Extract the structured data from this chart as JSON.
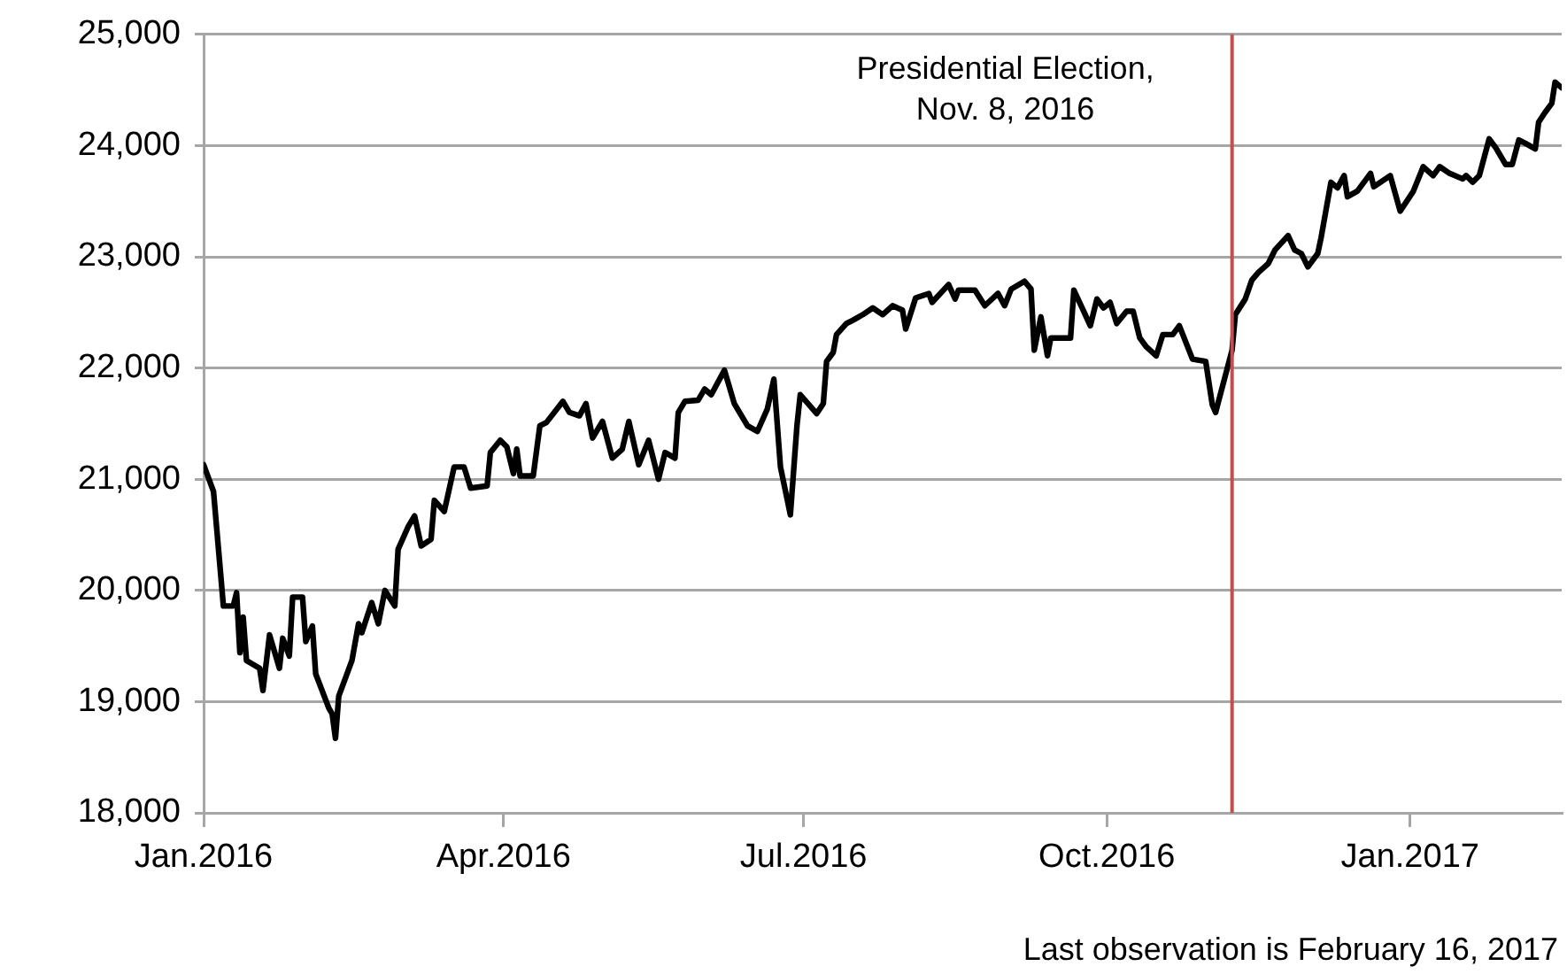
{
  "chart_data": {
    "type": "line",
    "xlim": [
      "2016-01-01",
      "2017-02-16"
    ],
    "ylim": [
      18000,
      25000
    ],
    "xticks": [
      {
        "value": "2016-01-01",
        "label": "Jan.2016"
      },
      {
        "value": "2016-04-01",
        "label": "Apr.2016"
      },
      {
        "value": "2016-07-01",
        "label": "Jul.2016"
      },
      {
        "value": "2016-10-01",
        "label": "Oct.2016"
      },
      {
        "value": "2017-01-01",
        "label": "Jan.2017"
      }
    ],
    "yticks": [
      {
        "value": 18000,
        "label": "18,000"
      },
      {
        "value": 19000,
        "label": "19,000"
      },
      {
        "value": 20000,
        "label": "20,000"
      },
      {
        "value": 21000,
        "label": "21,000"
      },
      {
        "value": 22000,
        "label": "22,000"
      },
      {
        "value": 23000,
        "label": "23,000"
      },
      {
        "value": 24000,
        "label": "24,000"
      },
      {
        "value": 25000,
        "label": "25,000"
      }
    ],
    "grid": "y",
    "legend": false,
    "marker": "none",
    "line_style": "solid",
    "ref_lines": [
      {
        "axis": "x",
        "value": "2016-11-08",
        "label": "Presidential Election,\nNov. 8, 2016",
        "color": "#c0504d"
      }
    ],
    "annotations": [
      "Last observation is February 16, 2017"
    ],
    "series": [
      {
        "color": "#000000",
        "x": [
          "2016-01-01",
          "2016-01-04",
          "2016-01-07",
          "2016-01-10",
          "2016-01-11",
          "2016-01-12",
          "2016-01-13",
          "2016-01-14",
          "2016-01-18",
          "2016-01-19",
          "2016-01-21",
          "2016-01-24",
          "2016-01-25",
          "2016-01-27",
          "2016-01-28",
          "2016-01-31",
          "2016-02-01",
          "2016-02-03",
          "2016-02-04",
          "2016-02-08",
          "2016-02-09",
          "2016-02-10",
          "2016-02-11",
          "2016-02-15",
          "2016-02-17",
          "2016-02-18",
          "2016-02-21",
          "2016-02-23",
          "2016-02-25",
          "2016-02-28",
          "2016-02-29",
          "2016-03-03",
          "2016-03-05",
          "2016-03-07",
          "2016-03-10",
          "2016-03-11",
          "2016-03-14",
          "2016-03-17",
          "2016-03-20",
          "2016-03-22",
          "2016-03-27",
          "2016-03-28",
          "2016-03-31",
          "2016-04-02",
          "2016-04-04",
          "2016-04-05",
          "2016-04-06",
          "2016-04-10",
          "2016-04-12",
          "2016-04-14",
          "2016-04-19",
          "2016-04-21",
          "2016-04-24",
          "2016-04-26",
          "2016-04-28",
          "2016-05-01",
          "2016-05-04",
          "2016-05-07",
          "2016-05-09",
          "2016-05-12",
          "2016-05-15",
          "2016-05-18",
          "2016-05-20",
          "2016-05-23",
          "2016-05-24",
          "2016-05-26",
          "2016-05-30",
          "2016-06-01",
          "2016-06-03",
          "2016-06-07",
          "2016-06-10",
          "2016-06-14",
          "2016-06-17",
          "2016-06-20",
          "2016-06-22",
          "2016-06-24",
          "2016-06-27",
          "2016-06-29",
          "2016-06-30",
          "2016-07-05",
          "2016-07-07",
          "2016-07-08",
          "2016-07-10",
          "2016-07-11",
          "2016-07-14",
          "2016-07-16",
          "2016-07-19",
          "2016-07-22",
          "2016-07-25",
          "2016-07-28",
          "2016-07-31",
          "2016-08-01",
          "2016-08-04",
          "2016-08-08",
          "2016-08-09",
          "2016-08-14",
          "2016-08-16",
          "2016-08-17",
          "2016-08-22",
          "2016-08-25",
          "2016-08-29",
          "2016-08-31",
          "2016-09-02",
          "2016-09-06",
          "2016-09-08",
          "2016-09-09",
          "2016-09-11",
          "2016-09-13",
          "2016-09-14",
          "2016-09-20",
          "2016-09-21",
          "2016-09-24",
          "2016-09-26",
          "2016-09-28",
          "2016-09-30",
          "2016-10-02",
          "2016-10-04",
          "2016-10-07",
          "2016-10-09",
          "2016-10-11",
          "2016-10-13",
          "2016-10-16",
          "2016-10-18",
          "2016-10-21",
          "2016-10-23",
          "2016-10-27",
          "2016-10-31",
          "2016-11-02",
          "2016-11-03",
          "2016-11-08",
          "2016-11-09",
          "2016-11-12",
          "2016-11-14",
          "2016-11-16",
          "2016-11-19",
          "2016-11-21",
          "2016-11-25",
          "2016-11-27",
          "2016-11-29",
          "2016-12-01",
          "2016-12-04",
          "2016-12-05",
          "2016-12-08",
          "2016-12-10",
          "2016-12-12",
          "2016-12-13",
          "2016-12-16",
          "2016-12-20",
          "2016-12-21",
          "2016-12-26",
          "2016-12-29",
          "2017-01-02",
          "2017-01-05",
          "2017-01-08",
          "2017-01-10",
          "2017-01-13",
          "2017-01-17",
          "2017-01-18",
          "2017-01-20",
          "2017-01-22",
          "2017-01-25",
          "2017-01-27",
          "2017-01-30",
          "2017-02-01",
          "2017-02-03",
          "2017-02-05",
          "2017-02-08",
          "2017-02-09",
          "2017-02-11",
          "2017-02-13",
          "2017-02-14",
          "2017-02-16"
        ],
        "values": [
          21130,
          20890,
          19860,
          19860,
          19980,
          19440,
          19760,
          19370,
          19300,
          19100,
          19600,
          19300,
          19570,
          19410,
          19940,
          19940,
          19540,
          19680,
          19250,
          18940,
          18890,
          18670,
          19050,
          19370,
          19700,
          19620,
          19890,
          19700,
          20000,
          19860,
          20370,
          20570,
          20670,
          20400,
          20460,
          20810,
          20710,
          21110,
          21110,
          20920,
          20940,
          21240,
          21350,
          21290,
          21050,
          21270,
          21030,
          21030,
          21480,
          21510,
          21700,
          21600,
          21570,
          21680,
          21370,
          21520,
          21190,
          21270,
          21520,
          21130,
          21350,
          21000,
          21240,
          21190,
          21600,
          21700,
          21710,
          21810,
          21760,
          21980,
          21680,
          21480,
          21430,
          21630,
          21900,
          21110,
          20680,
          21480,
          21760,
          21590,
          21680,
          22060,
          22140,
          22300,
          22400,
          22430,
          22480,
          22540,
          22480,
          22560,
          22520,
          22350,
          22630,
          22670,
          22590,
          22750,
          22620,
          22700,
          22700,
          22560,
          22670,
          22560,
          22710,
          22780,
          22710,
          22160,
          22460,
          22110,
          22270,
          22270,
          22700,
          22510,
          22380,
          22620,
          22540,
          22590,
          22400,
          22510,
          22510,
          22270,
          22190,
          22110,
          22300,
          22300,
          22380,
          22080,
          22060,
          21670,
          21600,
          22160,
          22480,
          22620,
          22790,
          22860,
          22940,
          23060,
          23190,
          23060,
          23030,
          22910,
          23030,
          23170,
          23670,
          23620,
          23730,
          23540,
          23590,
          23750,
          23630,
          23730,
          23410,
          23590,
          23810,
          23730,
          23810,
          23750,
          23700,
          23730,
          23670,
          23730,
          24060,
          23980,
          23830,
          23830,
          24050,
          24020,
          23970,
          24210,
          24300,
          24380,
          24570,
          24520
        ]
      }
    ]
  }
}
